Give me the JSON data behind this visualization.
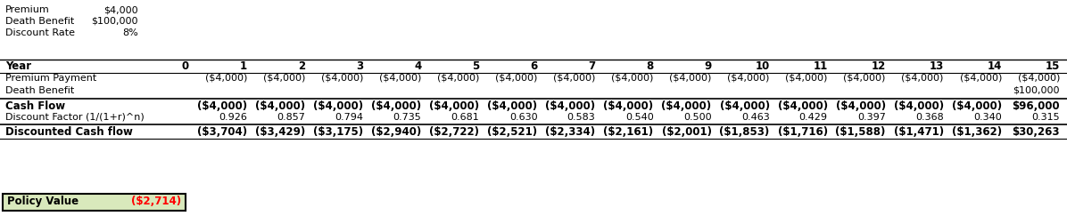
{
  "info_labels": [
    "Premium",
    "Death Benefit",
    "Discount Rate"
  ],
  "info_values": [
    "$4,000",
    "$100,000",
    "8%"
  ],
  "years": [
    "0",
    "1",
    "2",
    "3",
    "4",
    "5",
    "6",
    "7",
    "8",
    "9",
    "10",
    "11",
    "12",
    "13",
    "14",
    "15"
  ],
  "premium_payment": [
    "",
    "($4,000)",
    "($4,000)",
    "($4,000)",
    "($4,000)",
    "($4,000)",
    "($4,000)",
    "($4,000)",
    "($4,000)",
    "($4,000)",
    "($4,000)",
    "($4,000)",
    "($4,000)",
    "($4,000)",
    "($4,000)",
    "($4,000)"
  ],
  "death_benefit": [
    "",
    "",
    "",
    "",
    "",
    "",
    "",
    "",
    "",
    "",
    "",
    "",
    "",
    "",
    "",
    "$100,000"
  ],
  "cash_flow": [
    "",
    "($4,000)",
    "($4,000)",
    "($4,000)",
    "($4,000)",
    "($4,000)",
    "($4,000)",
    "($4,000)",
    "($4,000)",
    "($4,000)",
    "($4,000)",
    "($4,000)",
    "($4,000)",
    "($4,000)",
    "($4,000)",
    "$96,000"
  ],
  "discount_factor": [
    "",
    "0.926",
    "0.857",
    "0.794",
    "0.735",
    "0.681",
    "0.630",
    "0.583",
    "0.540",
    "0.500",
    "0.463",
    "0.429",
    "0.397",
    "0.368",
    "0.340",
    "0.315"
  ],
  "discounted_cf": [
    "",
    "($3,704)",
    "($3,429)",
    "($3,175)",
    "($2,940)",
    "($2,722)",
    "($2,521)",
    "($2,334)",
    "($2,161)",
    "($2,001)",
    "($1,853)",
    "($1,716)",
    "($1,588)",
    "($1,471)",
    "($1,362)",
    "$30,263"
  ],
  "policy_value_label": "Policy Value",
  "policy_value": "($2,714)",
  "policy_bg_color": "#d9e9bc",
  "policy_text_color": "#ff0000",
  "line_color": "#000000",
  "text_color": "#000000"
}
